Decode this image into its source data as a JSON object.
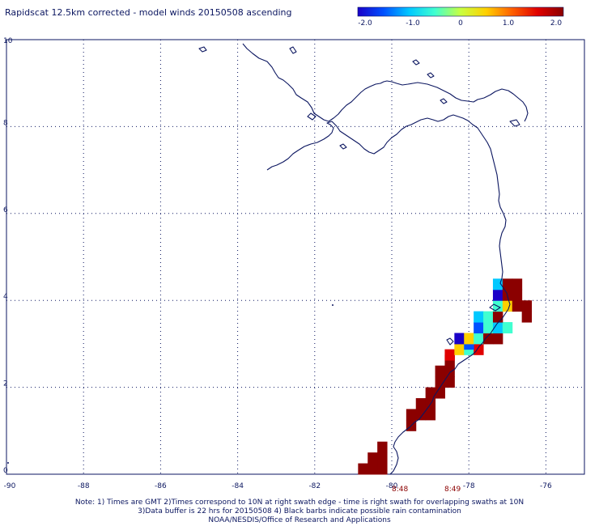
{
  "title": "Rapidscat 12.5km corrected - model winds 20150508 ascending",
  "colorbar": {
    "ticks": [
      "-2.0",
      "-1.0",
      "0",
      "1.0",
      "2.0"
    ],
    "stops": [
      "#1a00c8",
      "#0050ff",
      "#00c8ff",
      "#40ffd0",
      "#c8ff40",
      "#ffd000",
      "#ff6000",
      "#e00000",
      "#8b0000"
    ]
  },
  "axes": {
    "x_ticks": [
      "-90",
      "-88",
      "-86",
      "-84",
      "-82",
      "-80",
      "-78",
      "-76"
    ],
    "y_ticks": [
      "0",
      "2",
      "4",
      "6",
      "8",
      "10"
    ],
    "grid": true
  },
  "swath_times": [
    "8:48",
    "8:49"
  ],
  "notes": [
    "Note: 1) Times are GMT 2)Times correspond to 10N at right swath edge - time is right swath for overlapping swaths at 10N",
    "3)Data buffer is 22 hrs for 20150508 4) Black barbs indicate possible rain contamination",
    "NOAA/NESDIS/Office of Research and Applications"
  ],
  "colors": {
    "coast": "#0b1660",
    "grid": "#0b1660",
    "dark_red": "#8b0000"
  },
  "wind_diff_cells": [
    {
      "lon": -80.75,
      "lat": 0.125,
      "value": 2.0
    },
    {
      "lon": -80.5,
      "lat": 0.125,
      "value": 2.0
    },
    {
      "lon": -80.25,
      "lat": 0.125,
      "value": 2.0
    },
    {
      "lon": -80.5,
      "lat": 0.375,
      "value": 2.0
    },
    {
      "lon": -80.25,
      "lat": 0.375,
      "value": 2.0
    },
    {
      "lon": -80.25,
      "lat": 0.625,
      "value": 2.0
    },
    {
      "lon": -79.5,
      "lat": 1.125,
      "value": 1.8
    },
    {
      "lon": -79.5,
      "lat": 1.375,
      "value": 2.0
    },
    {
      "lon": -79.25,
      "lat": 1.375,
      "value": 2.0
    },
    {
      "lon": -79.0,
      "lat": 1.375,
      "value": 2.0
    },
    {
      "lon": -79.25,
      "lat": 1.625,
      "value": 2.0
    },
    {
      "lon": -79.0,
      "lat": 1.625,
      "value": 2.0
    },
    {
      "lon": -79.0,
      "lat": 1.875,
      "value": 2.0
    },
    {
      "lon": -78.75,
      "lat": 1.875,
      "value": 2.0
    },
    {
      "lon": -78.75,
      "lat": 2.125,
      "value": 2.0
    },
    {
      "lon": -78.5,
      "lat": 2.125,
      "value": 2.0
    },
    {
      "lon": -78.75,
      "lat": 2.375,
      "value": 2.0
    },
    {
      "lon": -78.5,
      "lat": 2.375,
      "value": 2.0
    },
    {
      "lon": -78.5,
      "lat": 2.625,
      "value": 2.0
    },
    {
      "lon": -78.5,
      "lat": 2.75,
      "value": 1.5
    },
    {
      "lon": -78.25,
      "lat": 2.875,
      "value": 0.6
    },
    {
      "lon": -78.0,
      "lat": 2.875,
      "value": -0.6
    },
    {
      "lon": -77.75,
      "lat": 2.875,
      "value": 1.4
    },
    {
      "lon": -78.0,
      "lat": 3.0,
      "value": -1.6
    },
    {
      "lon": -78.25,
      "lat": 3.125,
      "value": -1.8
    },
    {
      "lon": -78.0,
      "lat": 3.125,
      "value": 0.7
    },
    {
      "lon": -77.75,
      "lat": 3.125,
      "value": -0.5
    },
    {
      "lon": -77.5,
      "lat": 3.125,
      "value": 2.0
    },
    {
      "lon": -77.25,
      "lat": 3.125,
      "value": 2.0
    },
    {
      "lon": -77.75,
      "lat": 3.375,
      "value": -1.6
    },
    {
      "lon": -77.5,
      "lat": 3.375,
      "value": -0.6
    },
    {
      "lon": -77.25,
      "lat": 3.375,
      "value": -1.2
    },
    {
      "lon": -77.0,
      "lat": 3.375,
      "value": -0.4
    },
    {
      "lon": -77.75,
      "lat": 3.625,
      "value": -1.0
    },
    {
      "lon": -77.5,
      "lat": 3.625,
      "value": -0.6
    },
    {
      "lon": -77.25,
      "lat": 3.625,
      "value": 1.8
    },
    {
      "lon": -77.25,
      "lat": 3.875,
      "value": -0.4
    },
    {
      "lon": -77.0,
      "lat": 3.875,
      "value": 0.7
    },
    {
      "lon": -77.25,
      "lat": 4.125,
      "value": -1.8
    },
    {
      "lon": -77.25,
      "lat": 4.375,
      "value": -0.8
    },
    {
      "lon": -77.0,
      "lat": 4.125,
      "value": 2.0
    },
    {
      "lon": -76.75,
      "lat": 4.125,
      "value": 2.0
    },
    {
      "lon": -76.75,
      "lat": 3.875,
      "value": 2.0
    },
    {
      "lon": -77.0,
      "lat": 4.375,
      "value": 2.0
    },
    {
      "lon": -76.75,
      "lat": 4.375,
      "value": 2.0
    },
    {
      "lon": -76.5,
      "lat": 3.875,
      "value": 2.0
    },
    {
      "lon": -76.5,
      "lat": 3.625,
      "value": 2.0
    }
  ]
}
